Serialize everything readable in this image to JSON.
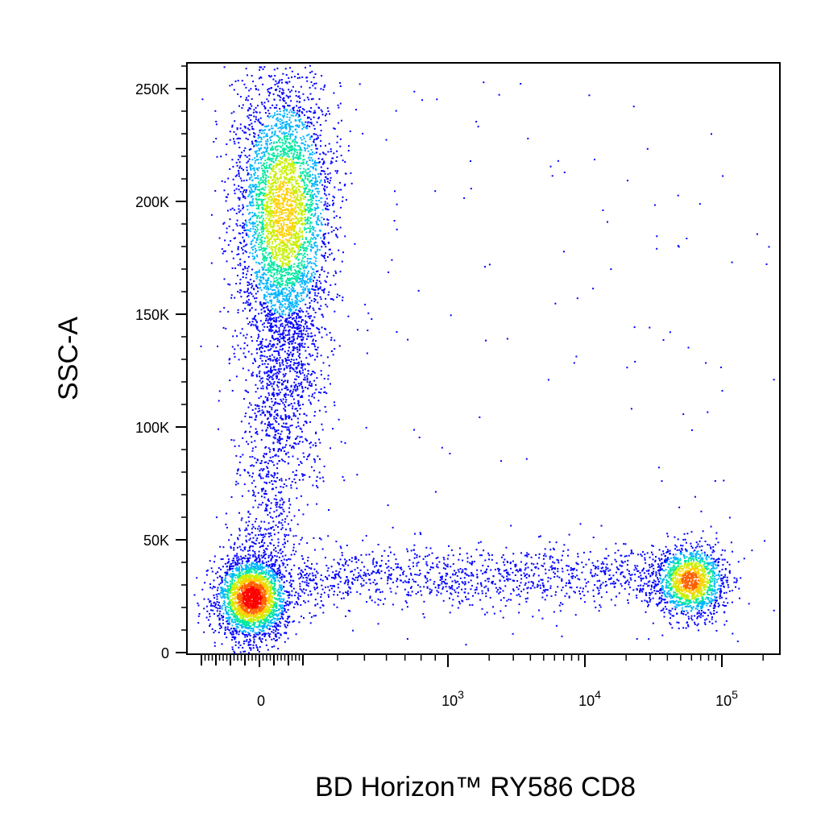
{
  "chart_data": {
    "type": "scatter",
    "subtype": "flow-cytometry density dot plot",
    "title": "",
    "xlabel": "BD Horizon™ RY586 CD8",
    "ylabel": "SSC-A",
    "x_scale": "biexponential",
    "y_scale": "linear",
    "ylim": [
      0,
      262144
    ],
    "x_ticks": [
      {
        "value": 0,
        "label": "0",
        "exp": ""
      },
      {
        "value": 1000,
        "label": "10",
        "exp": "3"
      },
      {
        "value": 10000,
        "label": "10",
        "exp": "4"
      },
      {
        "value": 100000,
        "label": "10",
        "exp": "5"
      }
    ],
    "y_ticks": [
      {
        "value": 0,
        "label": "0"
      },
      {
        "value": 50000,
        "label": "50K"
      },
      {
        "value": 100000,
        "label": "100K"
      },
      {
        "value": 150000,
        "label": "150K"
      },
      {
        "value": 200000,
        "label": "200K"
      },
      {
        "value": 250000,
        "label": "250K"
      }
    ],
    "grid": false,
    "legend": "none",
    "color_scale": [
      "#0000ff",
      "#00b4ff",
      "#00e8a0",
      "#c8f000",
      "#ffd000",
      "#ff6000",
      "#ff0000"
    ],
    "populations": [
      {
        "x_center": 0,
        "y_center": 25000,
        "x_spread": "narrow",
        "y_spread": 9000,
        "peak_density": "high"
      },
      {
        "x_center": 50,
        "y_center": 195000,
        "x_spread": "narrow",
        "y_spread": 35000,
        "peak_density": "medium"
      },
      {
        "x_center": 50000,
        "y_center": 32000,
        "x_spread": "narrow",
        "y_spread": 9000,
        "peak_density": "medium-high"
      }
    ]
  }
}
